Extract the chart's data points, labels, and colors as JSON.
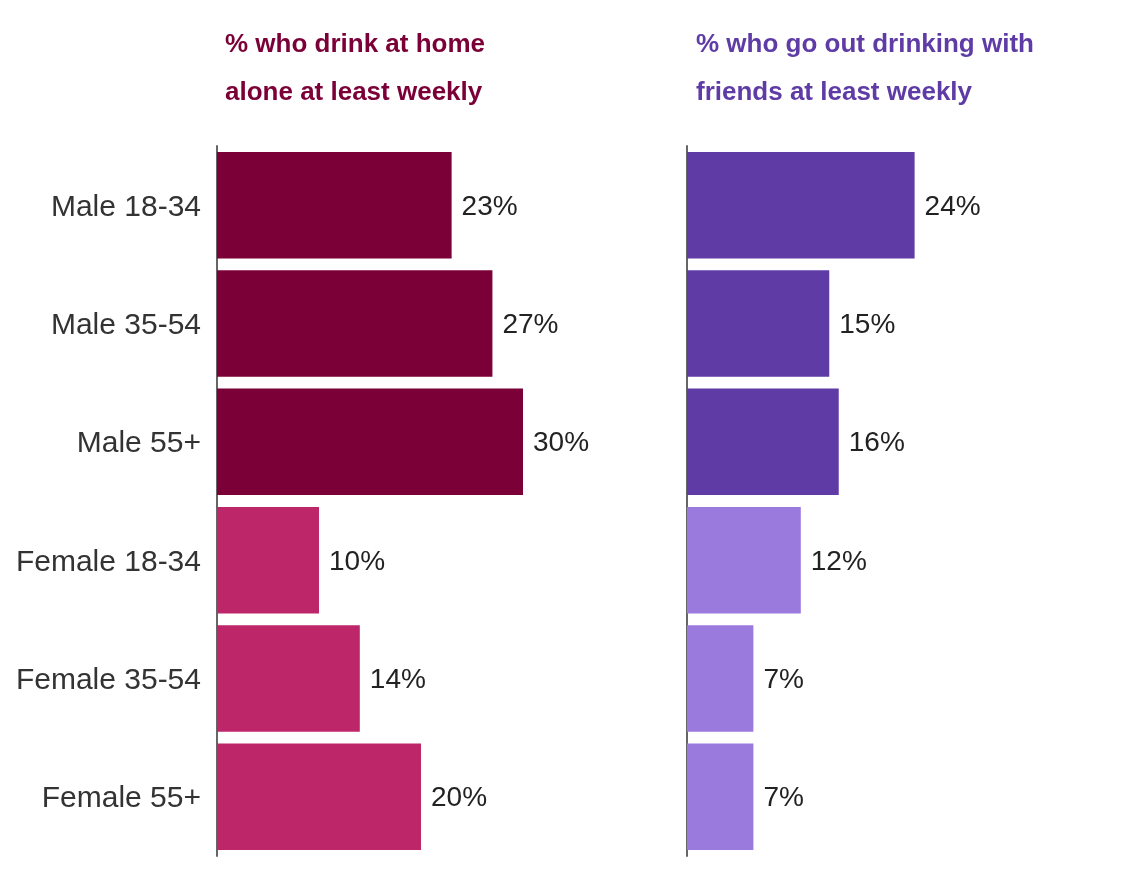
{
  "chart_data": [
    {
      "type": "bar",
      "orientation": "horizontal",
      "title": "% who drink at home alone at least weekly",
      "categories": [
        "Male 18-34",
        "Male 35-54",
        "Male 55+",
        "Female 18-34",
        "Female 35-54",
        "Female 55+"
      ],
      "values": [
        23,
        27,
        30,
        10,
        14,
        20
      ],
      "value_labels": [
        "23%",
        "27%",
        "30%",
        "10%",
        "14%",
        "20%"
      ],
      "colors": [
        "#7b0037",
        "#7b0037",
        "#7b0037",
        "#be266a",
        "#be266a",
        "#be266a"
      ],
      "tick_labels": "y"
    },
    {
      "type": "bar",
      "orientation": "horizontal",
      "title": "% who go out drinking with friends at least weekly",
      "categories": [
        "Male 18-34",
        "Male 35-54",
        "Male 55+",
        "Female 18-34",
        "Female 35-54",
        "Female 55+"
      ],
      "values": [
        24,
        15,
        16,
        12,
        7,
        7
      ],
      "value_labels": [
        "24%",
        "15%",
        "16%",
        "12%",
        "7%",
        "7%"
      ],
      "colors": [
        "#5f3ba6",
        "#5f3ba6",
        "#5f3ba6",
        "#9b7ade",
        "#9b7ade",
        "#9b7ade"
      ],
      "tick_labels": false
    }
  ]
}
